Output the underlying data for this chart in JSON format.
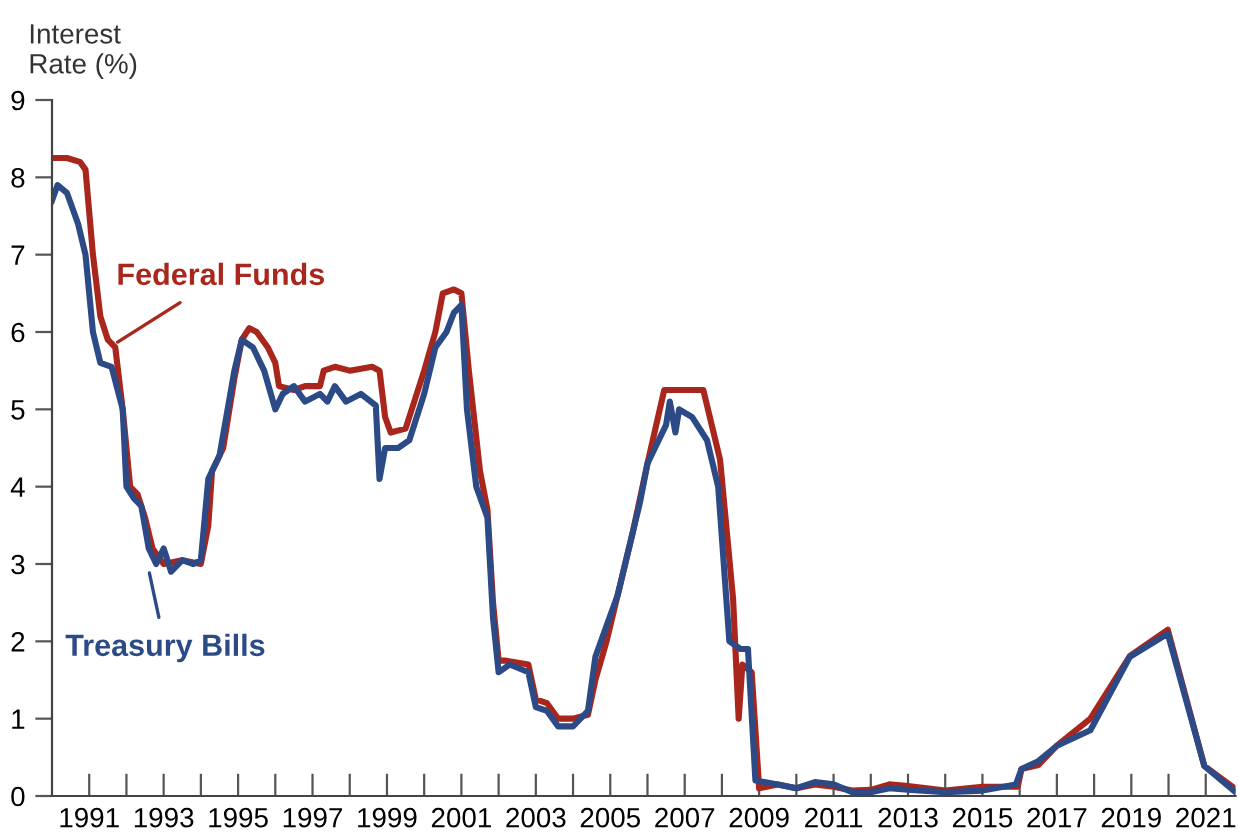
{
  "chart_data": {
    "type": "line",
    "ylabel": "Interest\nRate (%)",
    "xlim": [
      1990,
      2021.8
    ],
    "ylim": [
      0,
      9
    ],
    "xticks": [
      {
        "value": 1991,
        "label": "1991"
      },
      {
        "value": 1992,
        "label": null
      },
      {
        "value": 1993,
        "label": "1993"
      },
      {
        "value": 1994,
        "label": null
      },
      {
        "value": 1995,
        "label": "1995"
      },
      {
        "value": 1996,
        "label": null
      },
      {
        "value": 1997,
        "label": "1997"
      },
      {
        "value": 1998,
        "label": null
      },
      {
        "value": 1999,
        "label": "1999"
      },
      {
        "value": 2000,
        "label": null
      },
      {
        "value": 2001,
        "label": "2001"
      },
      {
        "value": 2002,
        "label": null
      },
      {
        "value": 2003,
        "label": "2003"
      },
      {
        "value": 2004,
        "label": null
      },
      {
        "value": 2005,
        "label": "2005"
      },
      {
        "value": 2006,
        "label": null
      },
      {
        "value": 2007,
        "label": "2007"
      },
      {
        "value": 2008,
        "label": null
      },
      {
        "value": 2009,
        "label": "2009"
      },
      {
        "value": 2010,
        "label": null
      },
      {
        "value": 2011,
        "label": "2011"
      },
      {
        "value": 2012,
        "label": null
      },
      {
        "value": 2013,
        "label": "2013"
      },
      {
        "value": 2014,
        "label": null
      },
      {
        "value": 2015,
        "label": "2015"
      },
      {
        "value": 2016,
        "label": null
      },
      {
        "value": 2017,
        "label": "2017"
      },
      {
        "value": 2018,
        "label": null
      },
      {
        "value": 2019,
        "label": "2019"
      },
      {
        "value": 2020,
        "label": null
      },
      {
        "value": 2021,
        "label": "2021"
      }
    ],
    "yticks": [
      0,
      1,
      2,
      3,
      4,
      5,
      6,
      7,
      8,
      9
    ],
    "grid": false,
    "legend": false,
    "marker": "none",
    "line_style": "solid",
    "series": [
      {
        "color": "#a8261c",
        "x": [
          1990.0,
          1990.4,
          1990.75,
          1990.9,
          1991.1,
          1991.3,
          1991.5,
          1991.7,
          1991.9,
          1992.1,
          1992.3,
          1992.5,
          1992.7,
          1993.0,
          1993.5,
          1994.0,
          1994.2,
          1994.3,
          1994.6,
          1994.9,
          1995.1,
          1995.3,
          1995.5,
          1995.8,
          1996.0,
          1996.1,
          1996.5,
          1996.8,
          1997.2,
          1997.3,
          1997.6,
          1998.0,
          1998.6,
          1998.8,
          1998.95,
          1999.1,
          1999.5,
          1999.8,
          2000.0,
          2000.3,
          2000.5,
          2000.8,
          2001.0,
          2001.2,
          2001.5,
          2001.7,
          2001.85,
          2002.0,
          2002.2,
          2002.8,
          2003.0,
          2003.3,
          2003.6,
          2004.0,
          2004.4,
          2004.6,
          2004.9,
          2005.3,
          2005.6,
          2006.0,
          2006.45,
          2007.0,
          2007.5,
          2007.95,
          2008.3,
          2008.45,
          2008.55,
          2008.8,
          2009.0,
          2009.5,
          2010.0,
          2010.5,
          2011.0,
          2011.5,
          2012.0,
          2012.5,
          2013.0,
          2013.5,
          2014.0,
          2015.0,
          2015.95,
          2016.05,
          2016.5,
          2017.0,
          2017.9,
          2018.96,
          2019.98,
          2020.96,
          2021.8
        ],
        "values": [
          8.25,
          8.25,
          8.2,
          8.1,
          7.0,
          6.2,
          5.9,
          5.8,
          5.0,
          4.0,
          3.9,
          3.6,
          3.2,
          3.0,
          3.05,
          3.0,
          3.5,
          4.2,
          4.5,
          5.4,
          5.9,
          6.05,
          6.0,
          5.8,
          5.6,
          5.3,
          5.25,
          5.3,
          5.3,
          5.5,
          5.55,
          5.5,
          5.55,
          5.5,
          4.9,
          4.7,
          4.75,
          5.2,
          5.5,
          6.0,
          6.5,
          6.55,
          6.5,
          5.5,
          4.2,
          3.7,
          2.5,
          1.75,
          1.75,
          1.7,
          1.25,
          1.2,
          1.0,
          1.0,
          1.05,
          1.5,
          2.0,
          2.8,
          3.4,
          4.3,
          5.25,
          5.25,
          5.25,
          4.35,
          2.55,
          1.0,
          1.7,
          1.6,
          0.1,
          0.15,
          0.1,
          0.15,
          0.12,
          0.07,
          0.08,
          0.15,
          0.13,
          0.1,
          0.07,
          0.12,
          0.12,
          0.35,
          0.4,
          0.65,
          1.0,
          1.81,
          2.15,
          0.39,
          0.09
        ]
      },
      {
        "color": "#2c4a86",
        "x": [
          1990.0,
          1990.15,
          1990.4,
          1990.7,
          1990.9,
          1991.1,
          1991.3,
          1991.6,
          1991.9,
          1992.0,
          1992.2,
          1992.4,
          1992.6,
          1992.8,
          1993.0,
          1993.2,
          1993.5,
          1993.8,
          1994.0,
          1994.2,
          1994.5,
          1994.9,
          1995.1,
          1995.4,
          1995.7,
          1996.0,
          1996.2,
          1996.5,
          1996.8,
          1997.2,
          1997.4,
          1997.6,
          1997.9,
          1998.3,
          1998.7,
          1998.8,
          1998.95,
          1999.3,
          1999.6,
          2000.0,
          2000.3,
          2000.6,
          2000.8,
          2001.0,
          2001.15,
          2001.4,
          2001.7,
          2001.85,
          2002.0,
          2002.3,
          2002.8,
          2003.0,
          2003.3,
          2003.6,
          2004.0,
          2004.4,
          2004.6,
          2004.9,
          2005.2,
          2005.5,
          2005.8,
          2006.0,
          2006.5,
          2006.6,
          2006.75,
          2006.85,
          2007.2,
          2007.6,
          2007.9,
          2008.2,
          2008.5,
          2008.7,
          2008.9,
          2009.5,
          2010.0,
          2010.5,
          2011.0,
          2011.5,
          2012.0,
          2012.5,
          2013.0,
          2014.0,
          2015.0,
          2015.9,
          2016.05,
          2016.5,
          2017.0,
          2017.9,
          2018.96,
          2019.98,
          2020.96,
          2021.8
        ],
        "values": [
          7.7,
          7.9,
          7.8,
          7.4,
          7.0,
          6.0,
          5.6,
          5.55,
          5.0,
          4.0,
          3.85,
          3.75,
          3.2,
          3.0,
          3.2,
          2.9,
          3.05,
          3.0,
          3.05,
          4.1,
          4.4,
          5.5,
          5.9,
          5.8,
          5.5,
          5.0,
          5.2,
          5.3,
          5.1,
          5.2,
          5.1,
          5.3,
          5.1,
          5.2,
          5.05,
          4.1,
          4.5,
          4.5,
          4.6,
          5.2,
          5.8,
          6.0,
          6.25,
          6.35,
          5.0,
          4.0,
          3.6,
          2.3,
          1.6,
          1.7,
          1.6,
          1.15,
          1.1,
          0.9,
          0.9,
          1.1,
          1.8,
          2.2,
          2.6,
          3.2,
          3.8,
          4.3,
          4.8,
          5.1,
          4.7,
          5.0,
          4.9,
          4.6,
          4.0,
          2.0,
          1.9,
          1.9,
          0.2,
          0.15,
          0.1,
          0.18,
          0.15,
          0.05,
          0.05,
          0.1,
          0.08,
          0.05,
          0.07,
          0.15,
          0.35,
          0.45,
          0.65,
          0.85,
          1.8,
          2.1,
          0.39,
          0.05
        ]
      }
    ],
    "annotations": [
      {
        "text": "Federal Funds",
        "x": 1991.7,
        "y": 5.85
      },
      {
        "text": "Treasury Bills",
        "x": 1992.6,
        "y": 2.92
      }
    ]
  }
}
